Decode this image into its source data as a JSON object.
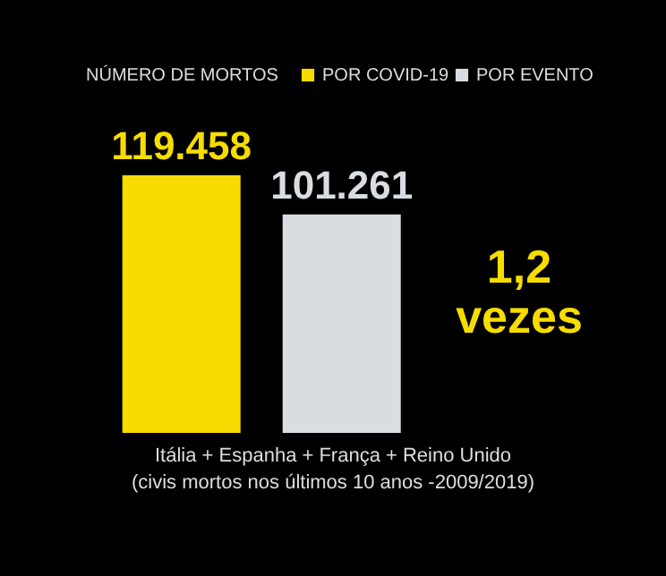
{
  "chart_data": {
    "type": "bar",
    "categories": [
      null
    ],
    "legend_title": "NÚMERO DE MORTOS",
    "legend": "top",
    "series": [
      {
        "name": "POR COVID-19",
        "color": "#f7dc00",
        "values": [
          119458
        ],
        "value_labels": [
          "119.458"
        ]
      },
      {
        "name": "POR EVENTO",
        "color": "#d9dce1",
        "values": [
          101261
        ],
        "value_labels": [
          "101.261"
        ]
      }
    ],
    "annotations": [
      "1,2 vezes",
      "Itália + Espanha + França + Reino Unido",
      "(civis mortos nos últimos 10 anos -2009/2019)"
    ]
  }
}
